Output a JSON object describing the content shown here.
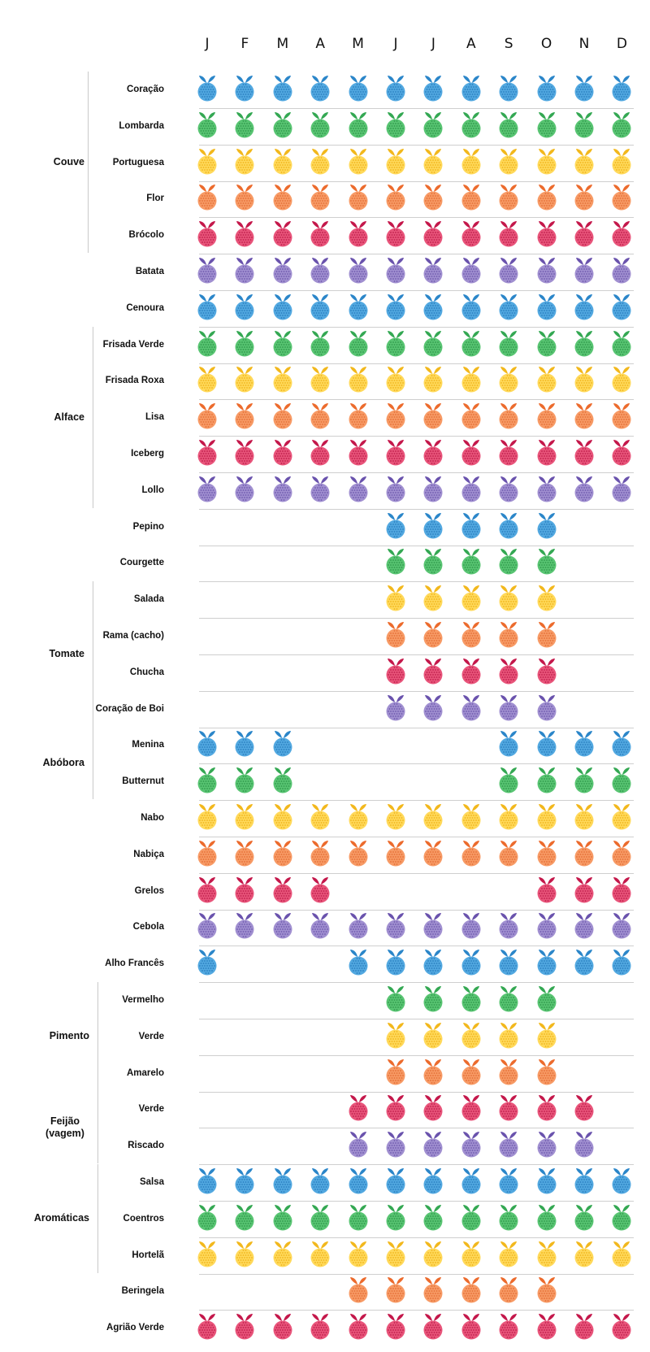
{
  "months": [
    "J",
    "F",
    "M",
    "A",
    "M",
    "J",
    "J",
    "A",
    "S",
    "O",
    "N",
    "D"
  ],
  "palette": {
    "blue": {
      "fill": "#52a8e0",
      "dot": "#2a7fc0",
      "leaf": "#2b86c9"
    },
    "green": {
      "fill": "#58c472",
      "dot": "#2f9a4c",
      "leaf": "#34a853"
    },
    "yellow": {
      "fill": "#ffd95a",
      "dot": "#f0b31b",
      "leaf": "#f2b81d"
    },
    "orange": {
      "fill": "#f79a65",
      "dot": "#e36f36",
      "leaf": "#ec6b2d"
    },
    "red": {
      "fill": "#e8547a",
      "dot": "#c01f4c",
      "leaf": "#c4184b"
    },
    "purple": {
      "fill": "#a08fd0",
      "dot": "#6f5aae",
      "leaf": "#6a53ad"
    }
  },
  "rows": [
    {
      "name": "Coração",
      "color": "blue",
      "months": [
        1,
        1,
        1,
        1,
        1,
        1,
        1,
        1,
        1,
        1,
        1,
        1
      ]
    },
    {
      "name": "Lombarda",
      "color": "green",
      "months": [
        1,
        1,
        1,
        1,
        1,
        1,
        1,
        1,
        1,
        1,
        1,
        1
      ]
    },
    {
      "name": "Portuguesa",
      "color": "yellow",
      "months": [
        1,
        1,
        1,
        1,
        1,
        1,
        1,
        1,
        1,
        1,
        1,
        1
      ]
    },
    {
      "name": "Flor",
      "color": "orange",
      "months": [
        1,
        1,
        1,
        1,
        1,
        1,
        1,
        1,
        1,
        1,
        1,
        1
      ]
    },
    {
      "name": "Brócolo",
      "color": "red",
      "months": [
        1,
        1,
        1,
        1,
        1,
        1,
        1,
        1,
        1,
        1,
        1,
        1
      ]
    },
    {
      "name": "Batata",
      "color": "purple",
      "months": [
        1,
        1,
        1,
        1,
        1,
        1,
        1,
        1,
        1,
        1,
        1,
        1
      ]
    },
    {
      "name": "Cenoura",
      "color": "blue",
      "months": [
        1,
        1,
        1,
        1,
        1,
        1,
        1,
        1,
        1,
        1,
        1,
        1
      ]
    },
    {
      "name": "Frisada Verde",
      "color": "green",
      "months": [
        1,
        1,
        1,
        1,
        1,
        1,
        1,
        1,
        1,
        1,
        1,
        1
      ]
    },
    {
      "name": "Frisada Roxa",
      "color": "yellow",
      "months": [
        1,
        1,
        1,
        1,
        1,
        1,
        1,
        1,
        1,
        1,
        1,
        1
      ]
    },
    {
      "name": "Lisa",
      "color": "orange",
      "months": [
        1,
        1,
        1,
        1,
        1,
        1,
        1,
        1,
        1,
        1,
        1,
        1
      ]
    },
    {
      "name": "Iceberg",
      "color": "red",
      "months": [
        1,
        1,
        1,
        1,
        1,
        1,
        1,
        1,
        1,
        1,
        1,
        1
      ]
    },
    {
      "name": "Lollo",
      "color": "purple",
      "months": [
        1,
        1,
        1,
        1,
        1,
        1,
        1,
        1,
        1,
        1,
        1,
        1
      ]
    },
    {
      "name": "Pepino",
      "color": "blue",
      "months": [
        0,
        0,
        0,
        0,
        0,
        1,
        1,
        1,
        1,
        1,
        0,
        0
      ]
    },
    {
      "name": "Courgette",
      "color": "green",
      "months": [
        0,
        0,
        0,
        0,
        0,
        1,
        1,
        1,
        1,
        1,
        0,
        0
      ]
    },
    {
      "name": "Salada",
      "color": "yellow",
      "months": [
        0,
        0,
        0,
        0,
        0,
        1,
        1,
        1,
        1,
        1,
        0,
        0
      ]
    },
    {
      "name": "Rama (cacho)",
      "color": "orange",
      "months": [
        0,
        0,
        0,
        0,
        0,
        1,
        1,
        1,
        1,
        1,
        0,
        0
      ]
    },
    {
      "name": "Chucha",
      "color": "red",
      "months": [
        0,
        0,
        0,
        0,
        0,
        1,
        1,
        1,
        1,
        1,
        0,
        0
      ]
    },
    {
      "name": "Coração de Boi",
      "color": "purple",
      "months": [
        0,
        0,
        0,
        0,
        0,
        1,
        1,
        1,
        1,
        1,
        0,
        0
      ]
    },
    {
      "name": "Menina",
      "color": "blue",
      "months": [
        1,
        1,
        1,
        0,
        0,
        0,
        0,
        0,
        1,
        1,
        1,
        1
      ]
    },
    {
      "name": "Butternut",
      "color": "green",
      "months": [
        1,
        1,
        1,
        0,
        0,
        0,
        0,
        0,
        1,
        1,
        1,
        1
      ]
    },
    {
      "name": "Nabo",
      "color": "yellow",
      "months": [
        1,
        1,
        1,
        1,
        1,
        1,
        1,
        1,
        1,
        1,
        1,
        1
      ]
    },
    {
      "name": "Nabiça",
      "color": "orange",
      "months": [
        1,
        1,
        1,
        1,
        1,
        1,
        1,
        1,
        1,
        1,
        1,
        1
      ]
    },
    {
      "name": "Grelos",
      "color": "red",
      "months": [
        1,
        1,
        1,
        1,
        0,
        0,
        0,
        0,
        0,
        1,
        1,
        1
      ]
    },
    {
      "name": "Cebola",
      "color": "purple",
      "months": [
        1,
        1,
        1,
        1,
        1,
        1,
        1,
        1,
        1,
        1,
        1,
        1
      ]
    },
    {
      "name": "Alho Francês",
      "color": "blue",
      "months": [
        1,
        0,
        0,
        0,
        1,
        1,
        1,
        1,
        1,
        1,
        1,
        1
      ]
    },
    {
      "name": "Vermelho",
      "color": "green",
      "months": [
        0,
        0,
        0,
        0,
        0,
        1,
        1,
        1,
        1,
        1,
        0,
        0
      ]
    },
    {
      "name": "Verde",
      "color": "yellow",
      "months": [
        0,
        0,
        0,
        0,
        0,
        1,
        1,
        1,
        1,
        1,
        0,
        0
      ]
    },
    {
      "name": "Amarelo",
      "color": "orange",
      "months": [
        0,
        0,
        0,
        0,
        0,
        1,
        1,
        1,
        1,
        1,
        0,
        0
      ]
    },
    {
      "name": "Verde",
      "color": "red",
      "months": [
        0,
        0,
        0,
        0,
        1,
        1,
        1,
        1,
        1,
        1,
        1,
        0
      ]
    },
    {
      "name": "Riscado",
      "color": "purple",
      "months": [
        0,
        0,
        0,
        0,
        1,
        1,
        1,
        1,
        1,
        1,
        1,
        0
      ]
    },
    {
      "name": "Salsa",
      "color": "blue",
      "months": [
        1,
        1,
        1,
        1,
        1,
        1,
        1,
        1,
        1,
        1,
        1,
        1
      ]
    },
    {
      "name": "Coentros",
      "color": "green",
      "months": [
        1,
        1,
        1,
        1,
        1,
        1,
        1,
        1,
        1,
        1,
        1,
        1
      ]
    },
    {
      "name": "Hortelã",
      "color": "yellow",
      "months": [
        1,
        1,
        1,
        1,
        1,
        1,
        1,
        1,
        1,
        1,
        1,
        1
      ]
    },
    {
      "name": "Beringela",
      "color": "orange",
      "months": [
        0,
        0,
        0,
        0,
        1,
        1,
        1,
        1,
        1,
        1,
        0,
        0
      ]
    },
    {
      "name": "Agrião Verde",
      "color": "red",
      "months": [
        1,
        1,
        1,
        1,
        1,
        1,
        1,
        1,
        1,
        1,
        1,
        1
      ]
    }
  ],
  "groups": [
    {
      "name": "Couve",
      "first": 0,
      "last": 4
    },
    {
      "name": "Alface",
      "first": 7,
      "last": 11
    },
    {
      "name": "Tomate",
      "first": 14,
      "last": 17
    },
    {
      "name": "Abóbora",
      "first": 18,
      "last": 19
    },
    {
      "name": "Pimento",
      "first": 25,
      "last": 27
    },
    {
      "name": "Feijão (vagem)",
      "first": 28,
      "last": 29
    },
    {
      "name": "Aromáticas",
      "first": 30,
      "last": 32
    }
  ]
}
